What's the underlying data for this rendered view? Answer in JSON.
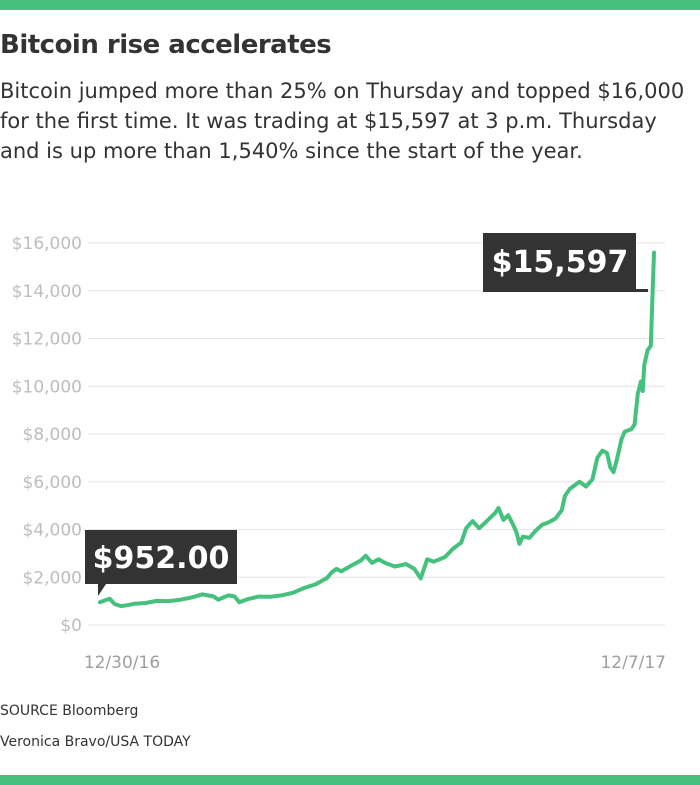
{
  "header": {
    "title": "Bitcoin rise accelerates",
    "subtitle": "Bitcoin jumped more than 25% on Thursday and topped $16,000 for the first time. It was trading at $15,597 at 3 p.m. Thursday and is up more than 1,540% since the start of the year."
  },
  "colors": {
    "accent": "#45c07d",
    "callout": "#333333",
    "gridline": "#e6e6e6",
    "tick_text": "#bdbdbd"
  },
  "chart_data": {
    "type": "line",
    "title": "Bitcoin rise accelerates",
    "xlabel": "",
    "ylabel": "",
    "x_tick_labels": [
      "12/30/16",
      "12/7/17"
    ],
    "y_ticks": [
      0,
      2000,
      4000,
      6000,
      8000,
      10000,
      12000,
      14000,
      16000
    ],
    "y_tick_labels": [
      "$0",
      "$2,000",
      "$4,000",
      "$6,000",
      "$8,000",
      "$10,000",
      "$12,000",
      "$14,000",
      "$16,000"
    ],
    "ylim": [
      0,
      16000
    ],
    "grid": true,
    "annotations": [
      {
        "label": "$952.00",
        "date": "2016-12-30",
        "value": 952
      },
      {
        "label": "$15,597",
        "date": "2017-12-07",
        "value": 15597
      }
    ],
    "series": [
      {
        "values": [
          [
            "2016-12-30",
            952
          ],
          [
            "2017-01-02",
            1030
          ],
          [
            "2017-01-05",
            1100
          ],
          [
            "2017-01-08",
            880
          ],
          [
            "2017-01-12",
            790
          ],
          [
            "2017-01-16",
            830
          ],
          [
            "2017-01-20",
            890
          ],
          [
            "2017-01-27",
            920
          ],
          [
            "2017-02-03",
            1010
          ],
          [
            "2017-02-10",
            1000
          ],
          [
            "2017-02-17",
            1050
          ],
          [
            "2017-02-25",
            1160
          ],
          [
            "2017-03-03",
            1280
          ],
          [
            "2017-03-10",
            1200
          ],
          [
            "2017-03-13",
            1060
          ],
          [
            "2017-03-19",
            1240
          ],
          [
            "2017-03-23",
            1200
          ],
          [
            "2017-03-26",
            950
          ],
          [
            "2017-03-31",
            1080
          ],
          [
            "2017-04-07",
            1190
          ],
          [
            "2017-04-14",
            1180
          ],
          [
            "2017-04-21",
            1240
          ],
          [
            "2017-04-28",
            1350
          ],
          [
            "2017-05-05",
            1550
          ],
          [
            "2017-05-12",
            1700
          ],
          [
            "2017-05-16",
            1850
          ],
          [
            "2017-05-19",
            1960
          ],
          [
            "2017-05-22",
            2200
          ],
          [
            "2017-05-25",
            2350
          ],
          [
            "2017-05-28",
            2250
          ],
          [
            "2017-06-03",
            2480
          ],
          [
            "2017-06-09",
            2700
          ],
          [
            "2017-06-12",
            2900
          ],
          [
            "2017-06-16",
            2600
          ],
          [
            "2017-06-20",
            2750
          ],
          [
            "2017-06-24",
            2600
          ],
          [
            "2017-06-30",
            2450
          ],
          [
            "2017-07-07",
            2550
          ],
          [
            "2017-07-12",
            2350
          ],
          [
            "2017-07-16",
            1950
          ],
          [
            "2017-07-20",
            2750
          ],
          [
            "2017-07-24",
            2650
          ],
          [
            "2017-07-31",
            2850
          ],
          [
            "2017-08-05",
            3200
          ],
          [
            "2017-08-10",
            3450
          ],
          [
            "2017-08-13",
            4050
          ],
          [
            "2017-08-15",
            4200
          ],
          [
            "2017-08-17",
            4350
          ],
          [
            "2017-08-21",
            4050
          ],
          [
            "2017-08-25",
            4300
          ],
          [
            "2017-08-31",
            4700
          ],
          [
            "2017-09-02",
            4900
          ],
          [
            "2017-09-05",
            4400
          ],
          [
            "2017-09-08",
            4600
          ],
          [
            "2017-09-11",
            4200
          ],
          [
            "2017-09-13",
            3900
          ],
          [
            "2017-09-15",
            3400
          ],
          [
            "2017-09-17",
            3700
          ],
          [
            "2017-09-21",
            3650
          ],
          [
            "2017-09-25",
            3950
          ],
          [
            "2017-09-29",
            4200
          ],
          [
            "2017-10-03",
            4300
          ],
          [
            "2017-10-07",
            4450
          ],
          [
            "2017-10-11",
            4800
          ],
          [
            "2017-10-13",
            5400
          ],
          [
            "2017-10-16",
            5700
          ],
          [
            "2017-10-20",
            5900
          ],
          [
            "2017-10-22",
            6000
          ],
          [
            "2017-10-26",
            5800
          ],
          [
            "2017-10-30",
            6100
          ],
          [
            "2017-11-02",
            7000
          ],
          [
            "2017-11-05",
            7300
          ],
          [
            "2017-11-08",
            7200
          ],
          [
            "2017-11-10",
            6600
          ],
          [
            "2017-11-12",
            6400
          ],
          [
            "2017-11-14",
            6900
          ],
          [
            "2017-11-17",
            7800
          ],
          [
            "2017-11-19",
            8100
          ],
          [
            "2017-11-23",
            8200
          ],
          [
            "2017-11-25",
            8400
          ],
          [
            "2017-11-27",
            9700
          ],
          [
            "2017-11-29",
            10200
          ],
          [
            "2017-11-30",
            9800
          ],
          [
            "2017-12-01",
            10900
          ],
          [
            "2017-12-03",
            11500
          ],
          [
            "2017-12-05",
            11700
          ],
          [
            "2017-12-06",
            13700
          ],
          [
            "2017-12-07",
            15597
          ]
        ]
      }
    ]
  },
  "footer": {
    "source": "SOURCE Bloomberg",
    "credit": "Veronica Bravo/USA TODAY"
  }
}
